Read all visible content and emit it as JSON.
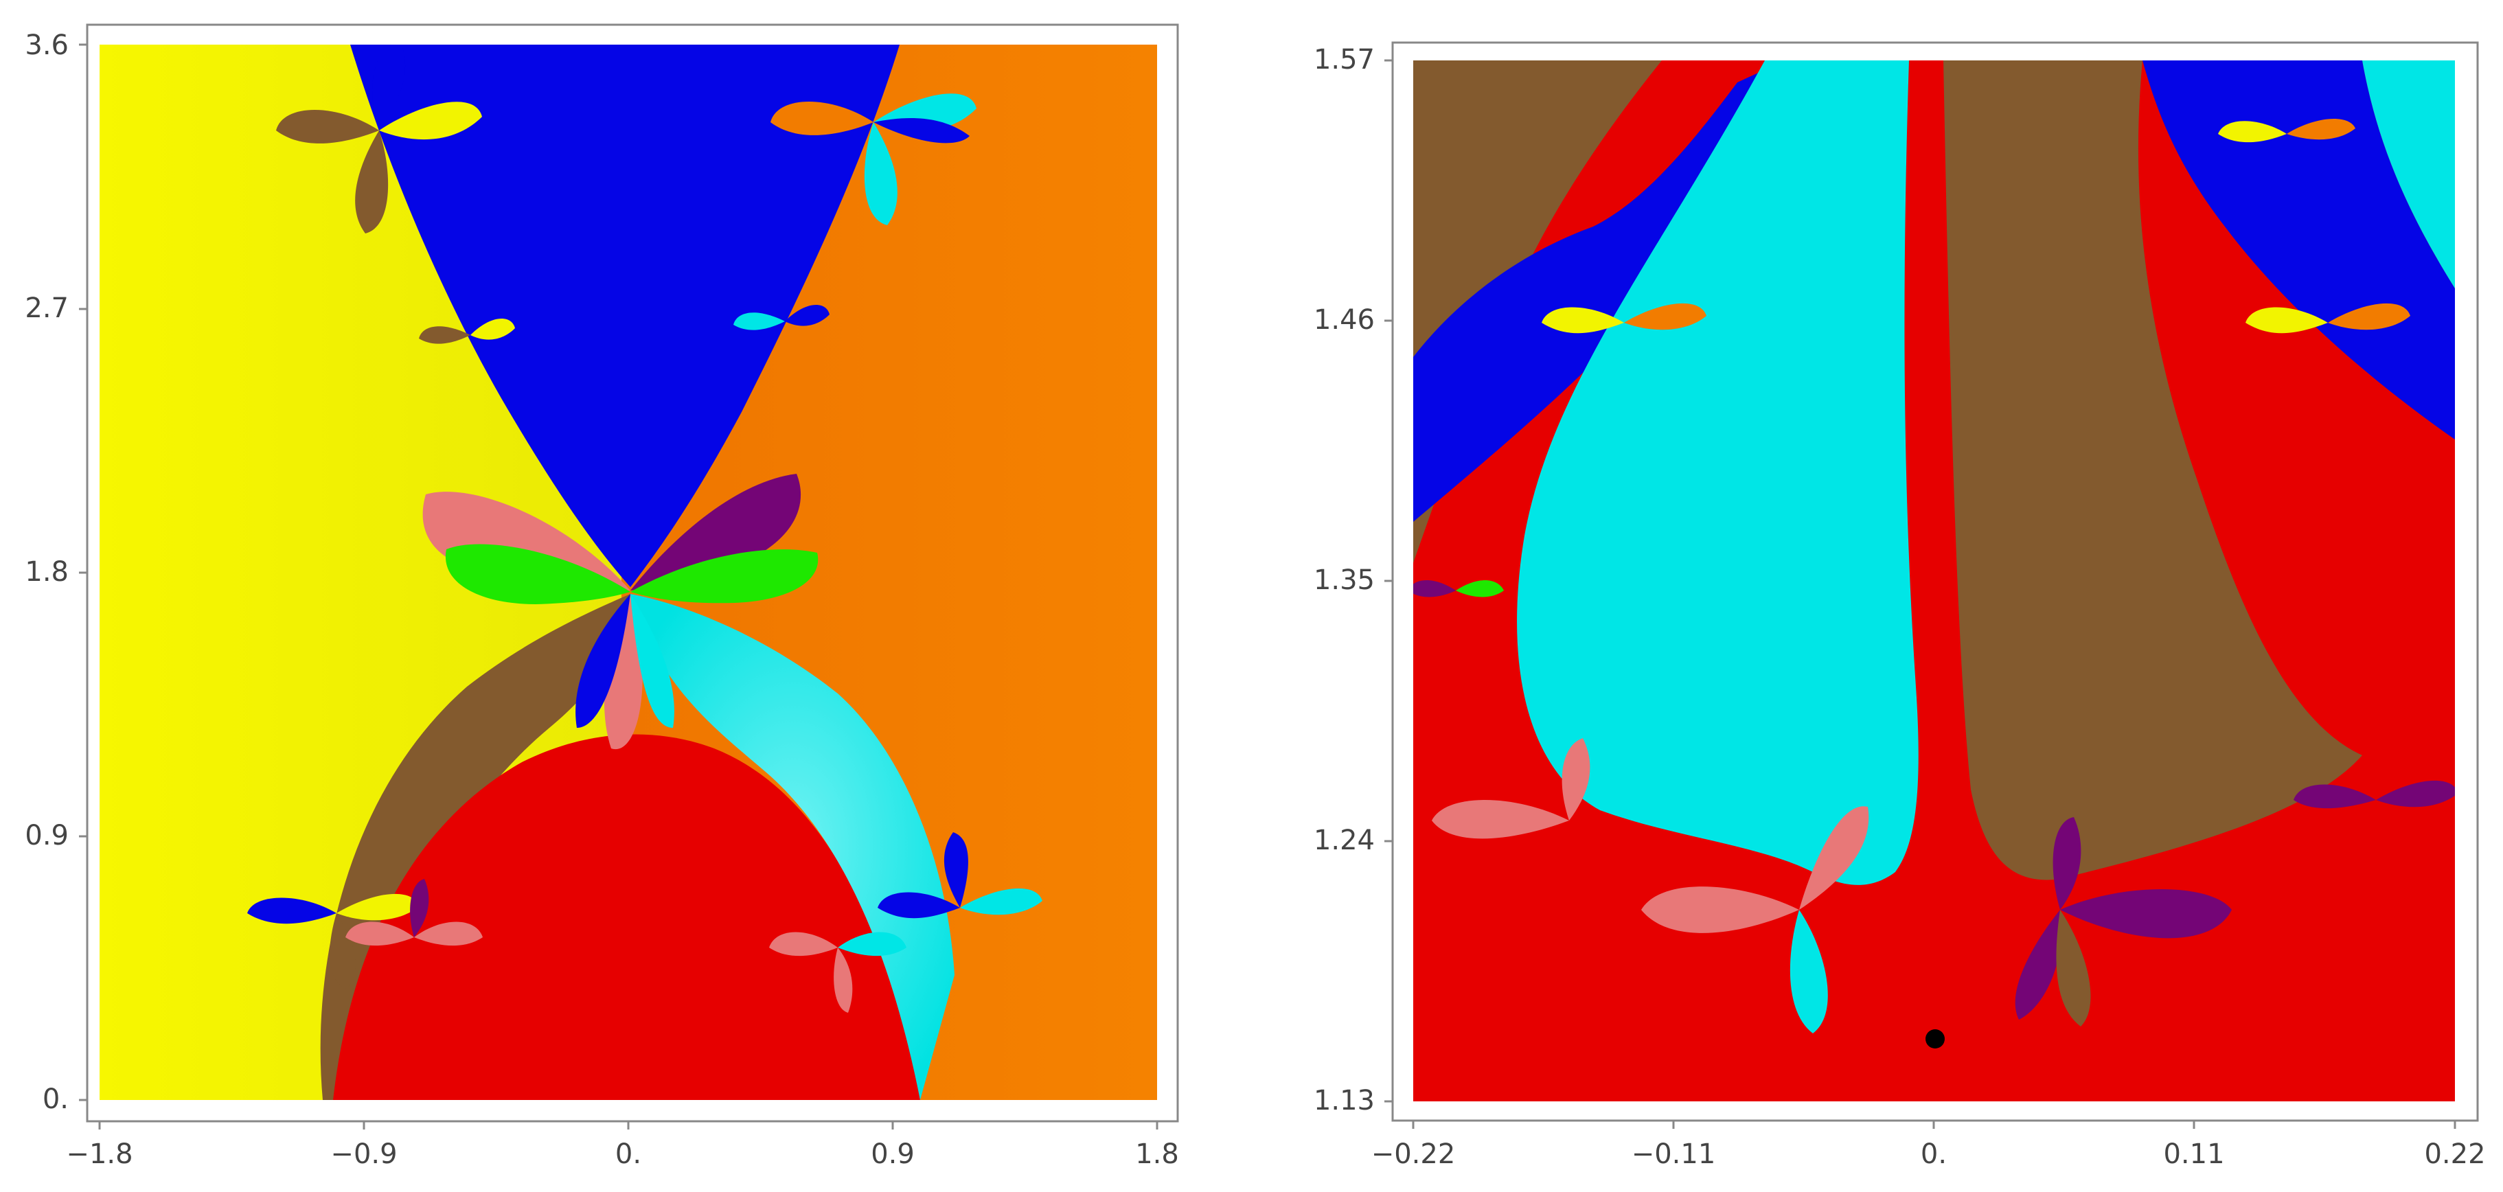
{
  "colors": {
    "yellow": "#f2f400",
    "blue": "#0505e6",
    "orange": "#f27c00",
    "cyan": "#00e6e6",
    "red": "#e60000",
    "brown": "#835a2e",
    "pink": "#e87878",
    "green": "#1ee800",
    "purple": "#740576",
    "black": "#000000"
  },
  "chart_data": [
    {
      "type": "heatmap",
      "title": "",
      "xlabel": "",
      "ylabel": "",
      "xlim": [
        -1.8,
        1.8
      ],
      "ylim": [
        0,
        3.6
      ],
      "x_ticks": [
        "−1.8",
        "−0.9",
        "0.",
        "0.9",
        "1.8"
      ],
      "y_ticks": [
        "0.",
        "0.9",
        "1.8",
        "2.7",
        "3.6"
      ],
      "description_regions": [
        {
          "color": "yellow",
          "region": "left"
        },
        {
          "color": "blue",
          "region": "top-center"
        },
        {
          "color": "orange",
          "region": "right"
        },
        {
          "color": "brown",
          "region": "lower-left arc"
        },
        {
          "color": "red",
          "region": "bottom-center"
        },
        {
          "color": "cyan",
          "region": "lower-right arc"
        },
        {
          "color": "pink",
          "region": "center-left petals"
        },
        {
          "color": "green",
          "region": "center petals"
        },
        {
          "color": "purple",
          "region": "center-right petals"
        }
      ],
      "grid": false
    },
    {
      "type": "heatmap",
      "title": "",
      "xlabel": "",
      "ylabel": "",
      "xlim": [
        -0.22,
        0.22
      ],
      "ylim": [
        1.13,
        1.57
      ],
      "x_ticks": [
        "−0.22",
        "−0.11",
        "0.",
        "0.11",
        "0.22"
      ],
      "y_ticks": [
        "1.13",
        "1.24",
        "1.35",
        "1.46",
        "1.57"
      ],
      "description_regions": [
        {
          "color": "brown",
          "region": "top-left and right-center"
        },
        {
          "color": "cyan",
          "region": "center-left and top-right"
        },
        {
          "color": "red",
          "region": "bottom and center stripe"
        },
        {
          "color": "blue",
          "region": "top-right"
        },
        {
          "color": "purple",
          "region": "lower-right petals"
        },
        {
          "color": "pink",
          "region": "lower-left petals"
        },
        {
          "color": "black",
          "region": "small blob near x=0, y=1.155"
        }
      ],
      "grid": false
    }
  ]
}
